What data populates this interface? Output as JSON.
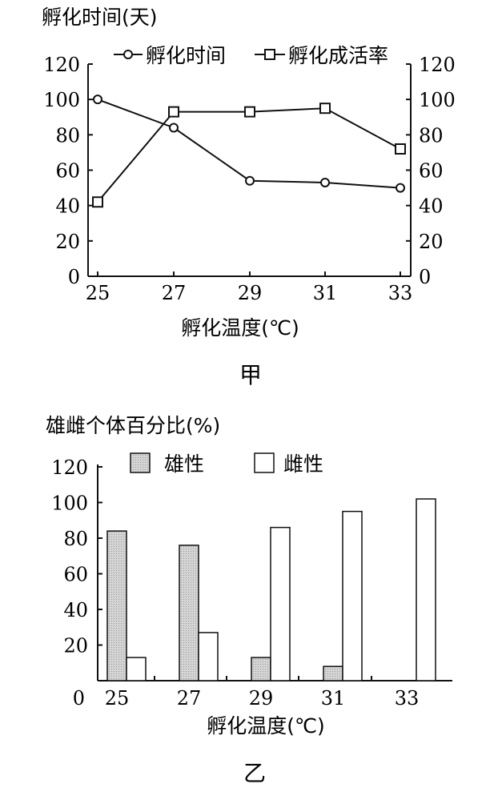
{
  "chart_data": [
    {
      "type": "line",
      "panel_label": "甲",
      "y_left_label": "孵化时间(天)",
      "x_label": "孵化温度(℃)",
      "x_ticks": [
        "25",
        "27",
        "29",
        "31",
        "33"
      ],
      "y_ticks": [
        "0",
        "20",
        "40",
        "60",
        "80",
        "100",
        "120"
      ],
      "y_right_ticks": [
        "0",
        "20",
        "40",
        "60",
        "80",
        "100",
        "120"
      ],
      "xlim": [
        25,
        33
      ],
      "ylim": [
        0,
        120
      ],
      "y_right_lim": [
        0,
        120
      ],
      "grid": false,
      "legend_position": "top",
      "series": [
        {
          "name": "孵化时间",
          "marker": "circle",
          "axis": "left",
          "x": [
            25,
            27,
            29,
            31,
            33
          ],
          "values": [
            100,
            84,
            54,
            53,
            50
          ]
        },
        {
          "name": "孵化成活率",
          "marker": "square",
          "axis": "right",
          "x": [
            25,
            27,
            29,
            31,
            33
          ],
          "values": [
            42,
            93,
            93,
            95,
            72
          ]
        }
      ]
    },
    {
      "type": "bar",
      "panel_label": "乙",
      "y_label": "雄雌个体百分比(%)",
      "x_label": "孵化温度(℃)",
      "categories": [
        "25",
        "27",
        "29",
        "31",
        "33"
      ],
      "y_ticks": [
        "0",
        "20",
        "40",
        "60",
        "80",
        "100",
        "120"
      ],
      "ylim": [
        0,
        120
      ],
      "grid": false,
      "legend_position": "top",
      "series": [
        {
          "name": "雄性",
          "fill": "#d4d4d4",
          "values": [
            84,
            76,
            13,
            8,
            0
          ]
        },
        {
          "name": "雌性",
          "fill": "#ffffff",
          "values": [
            13,
            27,
            86,
            95,
            102
          ]
        }
      ]
    }
  ]
}
